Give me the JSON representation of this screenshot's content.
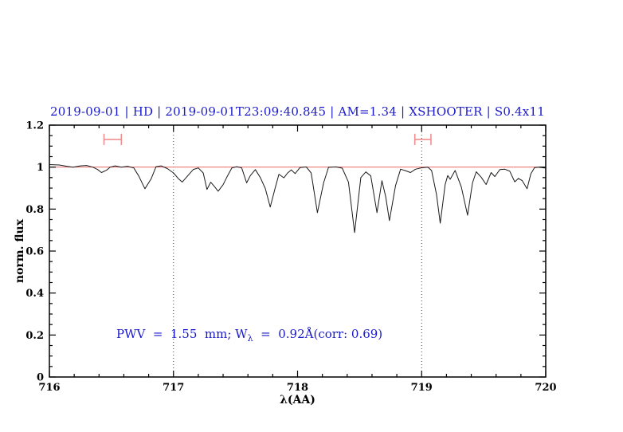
{
  "figure": {
    "annotation": {
      "pre": "PWV  =  1.55  mm; W",
      "sub": "λ",
      "post": "  =  0.92Å(corr: 0.69)"
    },
    "colors": {
      "title": "#1a1acc",
      "annotation": "#1a1acc",
      "spectrum": "#1a1a1a",
      "continuum": "#e86a6a",
      "error_bar": "#ef8f8f",
      "marker_line": "#3a3a3a",
      "axis": "#000000"
    }
  },
  "chart_data": {
    "type": "line",
    "title": "2019-09-01 | HD | 2019-09-01T23:09:40.845 | AM=1.34 | XSHOOTER | S0.4x11",
    "xlabel": "λ(AA)",
    "ylabel": "norm. flux",
    "annotation": "PWV = 1.55 mm; Wλ = 0.92Å(corr: 0.69)",
    "xlim": [
      716,
      720
    ],
    "ylim": [
      0,
      1.2
    ],
    "grid": false,
    "x_major_ticks": [
      716,
      717,
      718,
      719,
      720
    ],
    "x_tick_labels": [
      "716",
      "717",
      "718",
      "719",
      "720"
    ],
    "x_minor_step": 0.2,
    "y_major_ticks": [
      0,
      0.2,
      0.4,
      0.6,
      0.8,
      1,
      1.2
    ],
    "y_tick_labels": [
      "0",
      "0.2",
      "0.4",
      "0.6",
      "0.8",
      "1",
      "1.2"
    ],
    "y_minor_step": 0.05,
    "marker_lines_x": [
      717,
      719
    ],
    "continuum_y": 1.0,
    "error_bars": [
      {
        "x_center": 716.51,
        "x_half_width": 0.07,
        "y": 1.132,
        "cap_half_height": 0.027
      },
      {
        "x_center": 719.01,
        "x_half_width": 0.065,
        "y": 1.132,
        "cap_half_height": 0.027
      }
    ],
    "series": [
      {
        "name": "observed spectrum",
        "color": "#1a1a1a",
        "points": [
          [
            716.0,
            1.012
          ],
          [
            716.08,
            1.01
          ],
          [
            716.14,
            1.004
          ],
          [
            716.19,
            1.0
          ],
          [
            716.25,
            1.006
          ],
          [
            716.3,
            1.008
          ],
          [
            716.35,
            1.0
          ],
          [
            716.39,
            0.988
          ],
          [
            716.42,
            0.974
          ],
          [
            716.46,
            0.985
          ],
          [
            716.49,
            1.0
          ],
          [
            716.53,
            1.006
          ],
          [
            716.58,
            1.0
          ],
          [
            716.63,
            1.004
          ],
          [
            716.68,
            0.996
          ],
          [
            716.72,
            0.958
          ],
          [
            716.77,
            0.897
          ],
          [
            716.82,
            0.944
          ],
          [
            716.86,
            1.002
          ],
          [
            716.9,
            1.006
          ],
          [
            716.95,
            0.993
          ],
          [
            717.0,
            0.972
          ],
          [
            717.04,
            0.945
          ],
          [
            717.07,
            0.929
          ],
          [
            717.12,
            0.962
          ],
          [
            717.16,
            0.989
          ],
          [
            717.2,
            0.996
          ],
          [
            717.24,
            0.972
          ],
          [
            717.27,
            0.894
          ],
          [
            717.3,
            0.928
          ],
          [
            717.33,
            0.908
          ],
          [
            717.36,
            0.885
          ],
          [
            717.4,
            0.916
          ],
          [
            717.43,
            0.952
          ],
          [
            717.47,
            0.996
          ],
          [
            717.51,
            1.002
          ],
          [
            717.55,
            0.996
          ],
          [
            717.59,
            0.925
          ],
          [
            717.62,
            0.96
          ],
          [
            717.66,
            0.988
          ],
          [
            717.7,
            0.95
          ],
          [
            717.74,
            0.898
          ],
          [
            717.78,
            0.81
          ],
          [
            717.82,
            0.902
          ],
          [
            717.85,
            0.966
          ],
          [
            717.89,
            0.949
          ],
          [
            717.92,
            0.972
          ],
          [
            717.95,
            0.987
          ],
          [
            717.98,
            0.969
          ],
          [
            718.02,
            0.998
          ],
          [
            718.07,
            1.001
          ],
          [
            718.11,
            0.972
          ],
          [
            718.16,
            0.783
          ],
          [
            718.21,
            0.925
          ],
          [
            718.25,
            0.999
          ],
          [
            718.31,
            1.001
          ],
          [
            718.36,
            0.995
          ],
          [
            718.41,
            0.928
          ],
          [
            718.46,
            0.688
          ],
          [
            718.51,
            0.95
          ],
          [
            718.55,
            0.977
          ],
          [
            718.59,
            0.958
          ],
          [
            718.64,
            0.783
          ],
          [
            718.68,
            0.935
          ],
          [
            718.71,
            0.86
          ],
          [
            718.74,
            0.745
          ],
          [
            718.79,
            0.912
          ],
          [
            718.83,
            0.99
          ],
          [
            718.87,
            0.983
          ],
          [
            718.91,
            0.974
          ],
          [
            718.95,
            0.99
          ],
          [
            719.0,
            0.997
          ],
          [
            719.05,
            1.0
          ],
          [
            719.08,
            0.984
          ],
          [
            719.12,
            0.87
          ],
          [
            719.15,
            0.733
          ],
          [
            719.19,
            0.918
          ],
          [
            719.21,
            0.96
          ],
          [
            719.23,
            0.942
          ],
          [
            719.27,
            0.984
          ],
          [
            719.32,
            0.905
          ],
          [
            719.37,
            0.771
          ],
          [
            719.41,
            0.925
          ],
          [
            719.44,
            0.978
          ],
          [
            719.48,
            0.952
          ],
          [
            719.52,
            0.917
          ],
          [
            719.56,
            0.974
          ],
          [
            719.59,
            0.955
          ],
          [
            719.63,
            0.988
          ],
          [
            719.67,
            0.99
          ],
          [
            719.71,
            0.981
          ],
          [
            719.75,
            0.93
          ],
          [
            719.78,
            0.946
          ],
          [
            719.81,
            0.936
          ],
          [
            719.85,
            0.897
          ],
          [
            719.88,
            0.968
          ],
          [
            719.91,
            0.998
          ],
          [
            719.95,
            1.0
          ],
          [
            720.0,
            0.995
          ]
        ]
      },
      {
        "name": "continuum fit",
        "color": "#e86a6a",
        "points": [
          [
            716.0,
            1.0
          ],
          [
            720.0,
            1.0
          ]
        ]
      }
    ]
  }
}
